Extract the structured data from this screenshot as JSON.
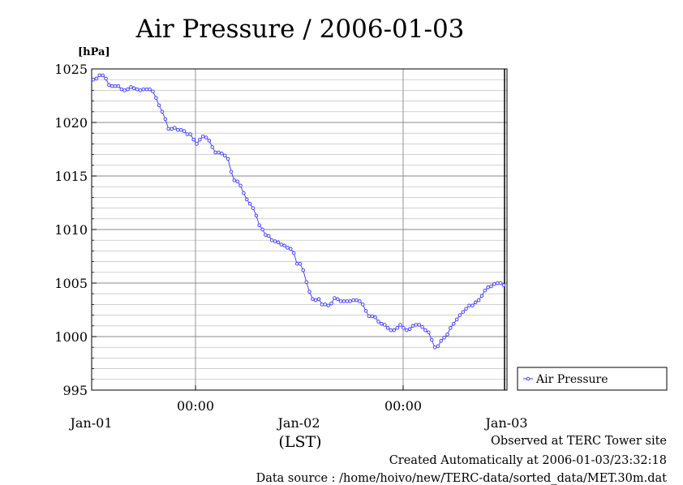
{
  "chart_data": {
    "type": "line",
    "title": "Air Pressure / 2006-01-03",
    "ylabel": "[hPa]",
    "xlabel": "(LST)",
    "ylim": [
      995,
      1025
    ],
    "yticks": [
      995,
      1000,
      1005,
      1010,
      1015,
      1020,
      1025
    ],
    "ytick_labels": [
      "995",
      "1000",
      "1005",
      "1010",
      "1015",
      "1020",
      "1025"
    ],
    "x_unit": "hours from 2006-01-01 00:00 LST",
    "xlim": [
      -12,
      36
    ],
    "xticks": [
      0,
      24
    ],
    "xtick_labels": [
      "00:00",
      "00:00"
    ],
    "day_labels": [
      "Jan-01",
      "Jan-02",
      "Jan-03"
    ],
    "day_label_positions": [
      -12,
      12,
      36
    ],
    "grid": true,
    "legend_position": "right",
    "series": [
      {
        "name": "Air Pressure",
        "color": "#3333ff",
        "marker": "open-circle",
        "values": [
          1024.0,
          1024.1,
          1024.4,
          1024.4,
          1024.1,
          1023.5,
          1023.4,
          1023.4,
          1023.4,
          1023.1,
          1023.0,
          1023.1,
          1023.3,
          1023.2,
          1023.1,
          1023.0,
          1023.1,
          1023.1,
          1023.1,
          1022.9,
          1022.3,
          1021.6,
          1021.0,
          1020.3,
          1019.4,
          1019.4,
          1019.5,
          1019.3,
          1019.3,
          1019.2,
          1018.9,
          1018.9,
          1018.4,
          1018.0,
          1018.4,
          1018.7,
          1018.6,
          1018.3,
          1017.7,
          1017.2,
          1017.2,
          1017.1,
          1016.9,
          1016.6,
          1015.4,
          1014.6,
          1014.5,
          1014.1,
          1013.4,
          1012.8,
          1012.4,
          1012.0,
          1011.3,
          1010.4,
          1010.0,
          1009.5,
          1009.4,
          1009.0,
          1008.9,
          1008.8,
          1008.6,
          1008.5,
          1008.3,
          1008.2,
          1007.8,
          1006.8,
          1006.8,
          1006.2,
          1005.1,
          1004.2,
          1003.5,
          1003.4,
          1003.5,
          1003.0,
          1003.0,
          1002.9,
          1003.1,
          1003.6,
          1003.5,
          1003.3,
          1003.3,
          1003.3,
          1003.3,
          1003.4,
          1003.4,
          1003.3,
          1003.0,
          1002.4,
          1001.9,
          1001.9,
          1001.8,
          1001.4,
          1001.2,
          1001.1,
          1000.8,
          1000.6,
          1000.6,
          1000.8,
          1001.1,
          1000.8,
          1000.6,
          1000.7,
          1001.0,
          1001.1,
          1001.1,
          1000.9,
          1000.6,
          1000.4,
          999.7,
          999.0,
          999.1,
          999.6,
          999.9,
          1000.2,
          1000.8,
          1001.2,
          1001.6,
          1002.0,
          1002.3,
          1002.6,
          1002.9,
          1002.9,
          1003.2,
          1003.4,
          1003.8,
          1004.3,
          1004.6,
          1004.7,
          1004.9,
          1005.0,
          1005.0,
          1004.8
        ]
      }
    ]
  },
  "legend": {
    "label": "Air Pressure"
  },
  "footer": {
    "line1": "Observed at TERC Tower site",
    "line2": "Created Automatically at 2006-01-03/23:32:18",
    "line3": "Data source : /home/hoivo/new/TERC-data/sorted_data/MET.30m.dat"
  }
}
